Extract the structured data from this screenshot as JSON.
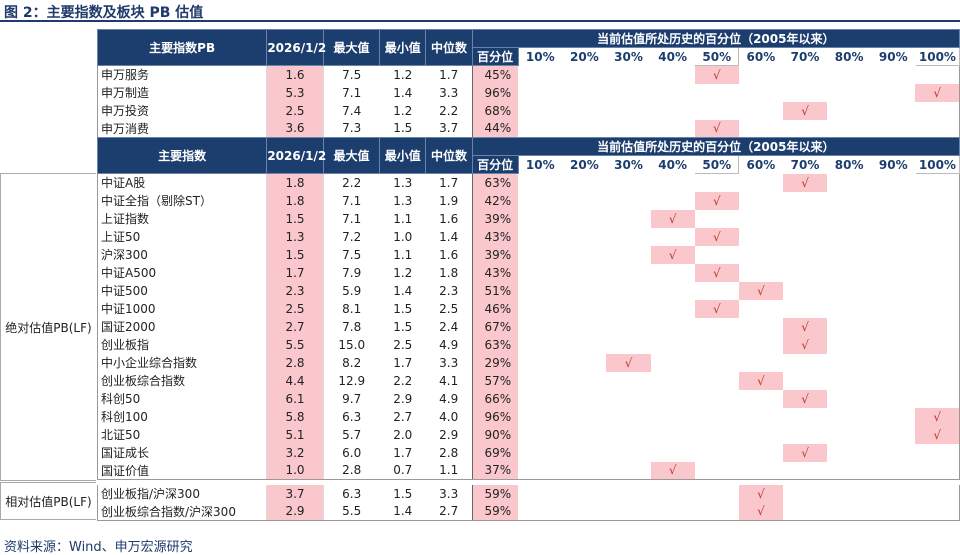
{
  "title": "图 2：主要指数及板块 PB 估值",
  "source": "资料来源：Wind、申万宏源研究",
  "check_mark": "√",
  "bins": [
    "10%",
    "20%",
    "30%",
    "40%",
    "50%",
    "60%",
    "70%",
    "80%",
    "90%",
    "100%"
  ],
  "header_pct_title": "当前估值所处历史的百分位（2005年以来）",
  "header_cols": {
    "date": "2026/1/2",
    "max": "最大值",
    "min": "最小值",
    "median": "中位数",
    "pct": "百分位"
  },
  "table1": {
    "name_header": "主要指数PB",
    "rows": [
      {
        "name": "申万服务",
        "cur": "1.6",
        "max": "7.5",
        "min": "1.2",
        "median": "1.7",
        "pct": "45%",
        "bin": 4
      },
      {
        "name": "申万制造",
        "cur": "5.3",
        "max": "7.1",
        "min": "1.4",
        "median": "3.3",
        "pct": "96%",
        "bin": 9
      },
      {
        "name": "申万投资",
        "cur": "2.5",
        "max": "7.4",
        "min": "1.2",
        "median": "2.2",
        "pct": "68%",
        "bin": 6
      },
      {
        "name": "申万消费",
        "cur": "3.6",
        "max": "7.3",
        "min": "1.5",
        "median": "3.7",
        "pct": "44%",
        "bin": 4
      }
    ]
  },
  "table2": {
    "name_header": "主要指数",
    "group_absolute": "绝对估值PB(LF)",
    "group_relative": "相对估值PB(LF)",
    "absolute_rows": [
      {
        "name": "中证A股",
        "cur": "1.8",
        "max": "2.2",
        "min": "1.3",
        "median": "1.7",
        "pct": "63%",
        "bin": 6
      },
      {
        "name": "中证全指（剔除ST）",
        "cur": "1.8",
        "max": "7.1",
        "min": "1.3",
        "median": "1.9",
        "pct": "42%",
        "bin": 4
      },
      {
        "name": "上证指数",
        "cur": "1.5",
        "max": "7.1",
        "min": "1.1",
        "median": "1.6",
        "pct": "39%",
        "bin": 3
      },
      {
        "name": "上证50",
        "cur": "1.3",
        "max": "7.2",
        "min": "1.0",
        "median": "1.4",
        "pct": "43%",
        "bin": 4
      },
      {
        "name": "沪深300",
        "cur": "1.5",
        "max": "7.5",
        "min": "1.1",
        "median": "1.6",
        "pct": "39%",
        "bin": 3
      },
      {
        "name": "中证A500",
        "cur": "1.7",
        "max": "7.9",
        "min": "1.2",
        "median": "1.8",
        "pct": "43%",
        "bin": 4
      },
      {
        "name": "中证500",
        "cur": "2.3",
        "max": "5.9",
        "min": "1.4",
        "median": "2.3",
        "pct": "51%",
        "bin": 5
      },
      {
        "name": "中证1000",
        "cur": "2.5",
        "max": "8.1",
        "min": "1.5",
        "median": "2.5",
        "pct": "46%",
        "bin": 4
      },
      {
        "name": "国证2000",
        "cur": "2.7",
        "max": "7.8",
        "min": "1.5",
        "median": "2.4",
        "pct": "67%",
        "bin": 6
      },
      {
        "name": "创业板指",
        "cur": "5.5",
        "max": "15.0",
        "min": "2.5",
        "median": "4.9",
        "pct": "63%",
        "bin": 6
      },
      {
        "name": "中小企业综合指数",
        "cur": "2.8",
        "max": "8.2",
        "min": "1.7",
        "median": "3.3",
        "pct": "29%",
        "bin": 2
      },
      {
        "name": "创业板综合指数",
        "cur": "4.4",
        "max": "12.9",
        "min": "2.2",
        "median": "4.1",
        "pct": "57%",
        "bin": 5
      },
      {
        "name": "科创50",
        "cur": "6.1",
        "max": "9.7",
        "min": "2.9",
        "median": "4.9",
        "pct": "66%",
        "bin": 6
      },
      {
        "name": "科创100",
        "cur": "5.8",
        "max": "6.3",
        "min": "2.7",
        "median": "4.0",
        "pct": "96%",
        "bin": 9
      },
      {
        "name": "北证50",
        "cur": "5.1",
        "max": "5.7",
        "min": "2.0",
        "median": "2.9",
        "pct": "90%",
        "bin": 9
      },
      {
        "name": "国证成长",
        "cur": "3.2",
        "max": "6.0",
        "min": "1.7",
        "median": "2.8",
        "pct": "69%",
        "bin": 6
      },
      {
        "name": "国证价值",
        "cur": "1.0",
        "max": "2.8",
        "min": "0.7",
        "median": "1.1",
        "pct": "37%",
        "bin": 3
      }
    ],
    "relative_rows": [
      {
        "name": "创业板指/沪深300",
        "cur": "3.7",
        "max": "6.3",
        "min": "1.5",
        "median": "3.3",
        "pct": "59%",
        "bin": 5
      },
      {
        "name": "创业板综合指数/沪深300",
        "cur": "2.9",
        "max": "5.5",
        "min": "1.4",
        "median": "2.7",
        "pct": "59%",
        "bin": 5
      }
    ]
  }
}
